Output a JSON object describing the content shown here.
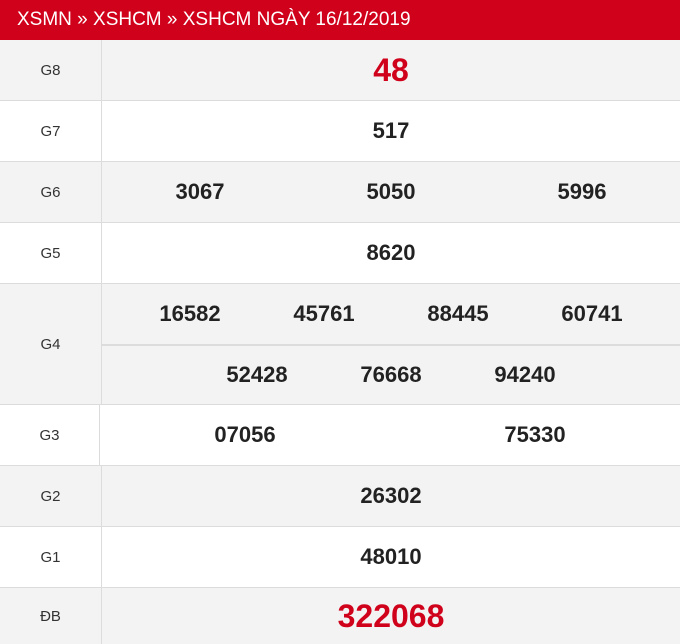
{
  "breadcrumb": "XSMN » XSHCM » XSHCM NGÀY 16/12/2019",
  "colors": {
    "header": "#d0021b",
    "highlight": "#d0021b",
    "row_alt": "#f3f3f3"
  },
  "prizes": [
    {
      "label": "G8",
      "numbers": [
        "48"
      ]
    },
    {
      "label": "G7",
      "numbers": [
        "517"
      ]
    },
    {
      "label": "G6",
      "numbers": [
        "3067",
        "5050",
        "5996"
      ]
    },
    {
      "label": "G5",
      "numbers": [
        "8620"
      ]
    },
    {
      "label": "G4",
      "numbers": [
        "16582",
        "45761",
        "88445",
        "60741",
        "52428",
        "76668",
        "94240"
      ]
    },
    {
      "label": "G3",
      "numbers": [
        "07056",
        "75330"
      ]
    },
    {
      "label": "G2",
      "numbers": [
        "26302"
      ]
    },
    {
      "label": "G1",
      "numbers": [
        "48010"
      ]
    },
    {
      "label": "ĐB",
      "numbers": [
        "322068"
      ]
    }
  ]
}
